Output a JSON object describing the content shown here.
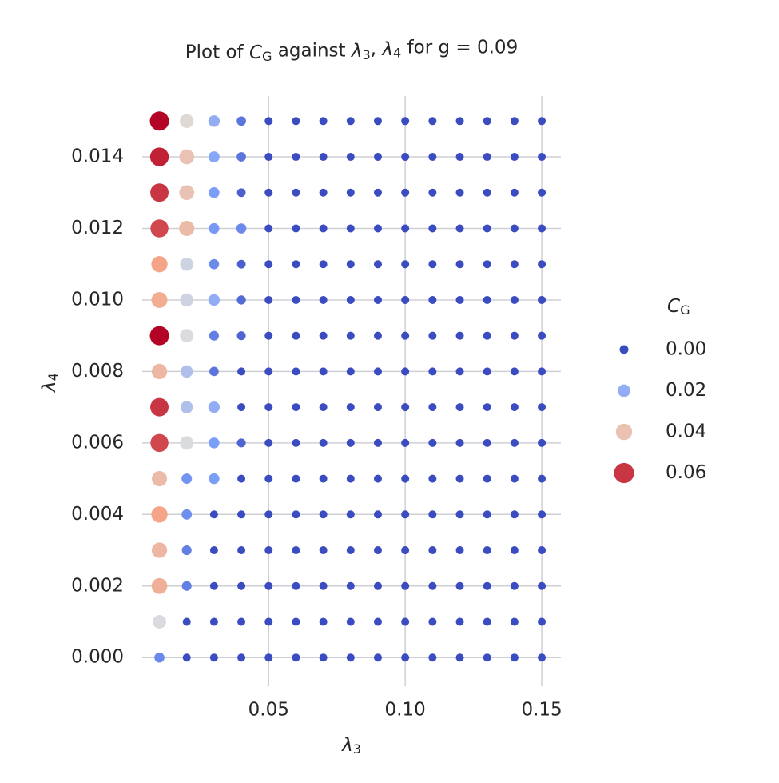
{
  "chart_data": {
    "type": "scatter",
    "title": "Plot of C_G against λ_3, λ_4 for g = 0.09",
    "xlabel": "λ_3",
    "ylabel": "λ_4",
    "x": [
      0.01,
      0.02,
      0.03,
      0.04,
      0.05,
      0.06,
      0.07,
      0.08,
      0.09,
      0.1,
      0.11,
      0.12,
      0.13,
      0.14,
      0.15
    ],
    "y": [
      0,
      0.001,
      0.002,
      0.003,
      0.004,
      0.005,
      0.006,
      0.007,
      0.008,
      0.009,
      0.01,
      0.011,
      0.012,
      0.013,
      0.014,
      0.015
    ],
    "values": [
      [
        0.012,
        0,
        0,
        0,
        0,
        0,
        0,
        0,
        0,
        0,
        0,
        0,
        0,
        0,
        0
      ],
      [
        0.032,
        0,
        0,
        0,
        0,
        0,
        0,
        0,
        0,
        0,
        0,
        0,
        0,
        0,
        0
      ],
      [
        0.045,
        0.01,
        0,
        0,
        0,
        0,
        0,
        0,
        0,
        0,
        0,
        0,
        0,
        0,
        0
      ],
      [
        0.043,
        0.01,
        0,
        0,
        0,
        0,
        0,
        0,
        0,
        0,
        0,
        0,
        0,
        0,
        0
      ],
      [
        0.048,
        0.013,
        0,
        0,
        0,
        0,
        0,
        0,
        0,
        0,
        0,
        0,
        0,
        0,
        0
      ],
      [
        0.042,
        0.014,
        0.016,
        0,
        0,
        0,
        0,
        0,
        0,
        0,
        0,
        0,
        0,
        0,
        0
      ],
      [
        0.058,
        0.032,
        0.016,
        0.005,
        0,
        0,
        0,
        0,
        0,
        0,
        0,
        0,
        0,
        0,
        0
      ],
      [
        0.06,
        0.025,
        0.02,
        0,
        0,
        0,
        0,
        0,
        0,
        0,
        0,
        0,
        0,
        0,
        0
      ],
      [
        0.043,
        0.025,
        0.008,
        0,
        0,
        0,
        0,
        0,
        0,
        0,
        0,
        0,
        0,
        0,
        0
      ],
      [
        0.065,
        0.032,
        0.01,
        0.005,
        0,
        0,
        0,
        0,
        0,
        0,
        0,
        0,
        0,
        0,
        0
      ],
      [
        0.046,
        0.03,
        0.02,
        0.006,
        0,
        0,
        0,
        0,
        0,
        0,
        0,
        0,
        0,
        0,
        0
      ],
      [
        0.048,
        0.03,
        0.012,
        0.004,
        0,
        0,
        0,
        0,
        0,
        0,
        0,
        0,
        0,
        0,
        0
      ],
      [
        0.058,
        0.042,
        0.015,
        0.012,
        0,
        0,
        0,
        0,
        0,
        0,
        0,
        0,
        0,
        0,
        0
      ],
      [
        0.06,
        0.04,
        0.016,
        0.004,
        0,
        0,
        0,
        0,
        0,
        0,
        0,
        0,
        0,
        0,
        0
      ],
      [
        0.062,
        0.04,
        0.018,
        0.008,
        0,
        0,
        0,
        0,
        0,
        0,
        0,
        0,
        0,
        0,
        0
      ],
      [
        0.065,
        0.034,
        0.02,
        0.008,
        0,
        0,
        0,
        0,
        0,
        0,
        0,
        0,
        0,
        0,
        0
      ]
    ],
    "colormap": "coolwarm",
    "clim": [
      0,
      0.065
    ],
    "xlim": [
      0.0037,
      0.157
    ],
    "ylim": [
      -0.0008,
      0.0157
    ],
    "xticks": [
      {
        "value": 0.05,
        "label": "0.05"
      },
      {
        "value": 0.1,
        "label": "0.10"
      },
      {
        "value": 0.15,
        "label": "0.15"
      }
    ],
    "yticks": [
      {
        "value": 0,
        "label": "0.000"
      },
      {
        "value": 0.002,
        "label": "0.002"
      },
      {
        "value": 0.004,
        "label": "0.004"
      },
      {
        "value": 0.006,
        "label": "0.006"
      },
      {
        "value": 0.008,
        "label": "0.008"
      },
      {
        "value": 0.01,
        "label": "0.010"
      },
      {
        "value": 0.012,
        "label": "0.012"
      },
      {
        "value": 0.014,
        "label": "0.014"
      }
    ],
    "grid": true,
    "legend": {
      "title": "C_G",
      "position": "right",
      "entries": [
        {
          "value": 0,
          "label": "0.00"
        },
        {
          "value": 0.02,
          "label": "0.02"
        },
        {
          "value": 0.04,
          "label": "0.04"
        },
        {
          "value": 0.06,
          "label": "0.06"
        }
      ]
    }
  }
}
